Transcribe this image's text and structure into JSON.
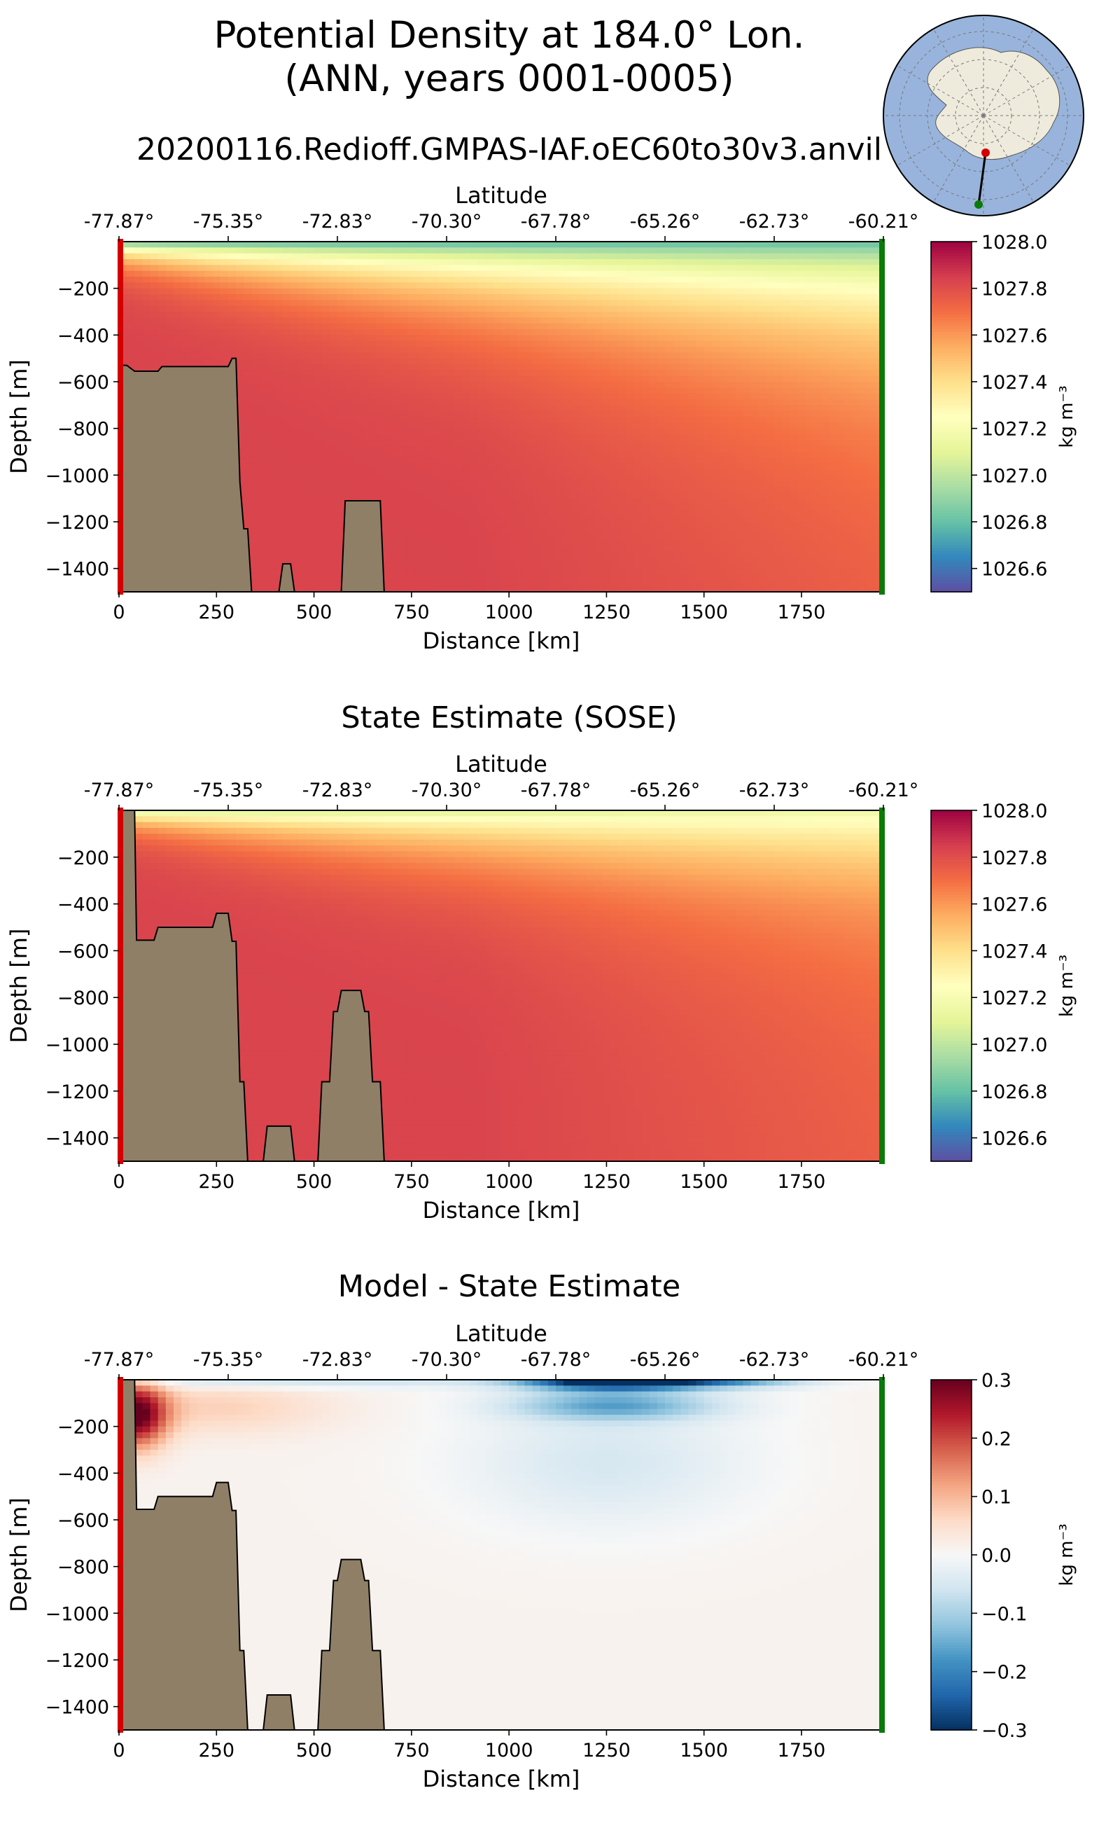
{
  "figure": {
    "title_line1": "Potential Density at 184.0° Lon.",
    "title_line2": "(ANN, years 0001-0005)",
    "subtitle": "20200116.Redioff.GMPAS-IAF.oEC60to30v3.anvil"
  },
  "chart_data": [
    {
      "type": "heatmap",
      "title": "",
      "xlabel": "Distance [km]",
      "ylabel": "Depth [m]",
      "top_axis_label": "Latitude",
      "xlim": [
        0,
        1960
      ],
      "ylim": [
        -1500,
        0
      ],
      "xticks": [
        0,
        250,
        500,
        750,
        1000,
        1250,
        1500,
        1750
      ],
      "yticks": [
        -200,
        -400,
        -600,
        -800,
        -1000,
        -1200,
        -1400
      ],
      "top_ticks": [
        {
          "distance": 0,
          "label": "-77.87°"
        },
        {
          "distance": 280,
          "label": "-75.35°"
        },
        {
          "distance": 560,
          "label": "-72.83°"
        },
        {
          "distance": 840,
          "label": "-70.30°"
        },
        {
          "distance": 1120,
          "label": "-67.78°"
        },
        {
          "distance": 1400,
          "label": "-65.26°"
        },
        {
          "distance": 1680,
          "label": "-62.73°"
        },
        {
          "distance": 1960,
          "label": "-60.21°"
        }
      ],
      "colorbar": {
        "label": "kg m⁻³",
        "colormap": "Spectral_r",
        "range": [
          1026.5,
          1028.0
        ],
        "ticks": [
          1028.0,
          1027.8,
          1027.6,
          1027.4,
          1027.2,
          1027.0,
          1026.8,
          1026.6
        ]
      },
      "section_start_color": "#d40000",
      "section_end_color": "#0a7a0a",
      "bathymetry_color": "#8f7f67",
      "bathymetry": [
        [
          0,
          -530
        ],
        [
          20,
          -530
        ],
        [
          40,
          -555
        ],
        [
          100,
          -555
        ],
        [
          110,
          -535
        ],
        [
          280,
          -535
        ],
        [
          290,
          -500
        ],
        [
          300,
          -500
        ],
        [
          310,
          -1030
        ],
        [
          320,
          -1230
        ],
        [
          330,
          -1230
        ],
        [
          340,
          -1500
        ],
        [
          410,
          -1500
        ],
        [
          420,
          -1380
        ],
        [
          440,
          -1380
        ],
        [
          450,
          -1500
        ],
        [
          570,
          -1500
        ],
        [
          580,
          -1110
        ],
        [
          670,
          -1110
        ],
        [
          680,
          -1500
        ]
      ],
      "field_description": "surface 1026.7-1027.2 light layer deepening northward; interior ~1027.75-1027.85"
    },
    {
      "type": "heatmap",
      "title": "State Estimate (SOSE)",
      "xlabel": "Distance [km]",
      "ylabel": "Depth [m]",
      "top_axis_label": "Latitude",
      "xlim": [
        0,
        1960
      ],
      "ylim": [
        -1500,
        0
      ],
      "xticks": [
        0,
        250,
        500,
        750,
        1000,
        1250,
        1500,
        1750
      ],
      "yticks": [
        -200,
        -400,
        -600,
        -800,
        -1000,
        -1200,
        -1400
      ],
      "top_ticks": [
        {
          "distance": 0,
          "label": "-77.87°"
        },
        {
          "distance": 280,
          "label": "-75.35°"
        },
        {
          "distance": 560,
          "label": "-72.83°"
        },
        {
          "distance": 840,
          "label": "-70.30°"
        },
        {
          "distance": 1120,
          "label": "-67.78°"
        },
        {
          "distance": 1400,
          "label": "-65.26°"
        },
        {
          "distance": 1680,
          "label": "-62.73°"
        },
        {
          "distance": 1960,
          "label": "-60.21°"
        }
      ],
      "colorbar": {
        "label": "kg m⁻³",
        "colormap": "Spectral_r",
        "range": [
          1026.5,
          1028.0
        ],
        "ticks": [
          1028.0,
          1027.8,
          1027.6,
          1027.4,
          1027.2,
          1027.0,
          1026.8,
          1026.6
        ]
      },
      "section_start_color": "#d40000",
      "section_end_color": "#0a7a0a",
      "bathymetry_color": "#8f7f67",
      "bathymetry": [
        [
          0,
          0
        ],
        [
          40,
          0
        ],
        [
          45,
          -555
        ],
        [
          90,
          -555
        ],
        [
          100,
          -500
        ],
        [
          240,
          -500
        ],
        [
          250,
          -440
        ],
        [
          280,
          -440
        ],
        [
          290,
          -560
        ],
        [
          300,
          -560
        ],
        [
          310,
          -1160
        ],
        [
          320,
          -1160
        ],
        [
          330,
          -1500
        ],
        [
          370,
          -1500
        ],
        [
          380,
          -1350
        ],
        [
          440,
          -1350
        ],
        [
          450,
          -1500
        ],
        [
          510,
          -1500
        ],
        [
          520,
          -1160
        ],
        [
          540,
          -1160
        ],
        [
          550,
          -860
        ],
        [
          560,
          -860
        ],
        [
          570,
          -770
        ],
        [
          620,
          -770
        ],
        [
          630,
          -860
        ],
        [
          640,
          -860
        ],
        [
          650,
          -1160
        ],
        [
          670,
          -1160
        ],
        [
          680,
          -1500
        ]
      ],
      "field_description": "surface ~1027.0-1027.3; interior ~1027.8"
    },
    {
      "type": "heatmap",
      "title": "Model - State Estimate",
      "xlabel": "Distance [km]",
      "ylabel": "Depth [m]",
      "top_axis_label": "Latitude",
      "xlim": [
        0,
        1960
      ],
      "ylim": [
        -1500,
        0
      ],
      "xticks": [
        0,
        250,
        500,
        750,
        1000,
        1250,
        1500,
        1750
      ],
      "yticks": [
        -200,
        -400,
        -600,
        -800,
        -1000,
        -1200,
        -1400
      ],
      "top_ticks": [
        {
          "distance": 0,
          "label": "-77.87°"
        },
        {
          "distance": 280,
          "label": "-75.35°"
        },
        {
          "distance": 560,
          "label": "-72.83°"
        },
        {
          "distance": 840,
          "label": "-70.30°"
        },
        {
          "distance": 1120,
          "label": "-67.78°"
        },
        {
          "distance": 1400,
          "label": "-65.26°"
        },
        {
          "distance": 1680,
          "label": "-62.73°"
        },
        {
          "distance": 1960,
          "label": "-60.21°"
        }
      ],
      "colorbar": {
        "label": "kg m⁻³",
        "colormap": "RdBu_r",
        "range": [
          -0.3,
          0.3
        ],
        "ticks": [
          0.3,
          0.2,
          0.1,
          0.0,
          -0.1,
          -0.2,
          -0.3
        ]
      },
      "section_start_color": "#d40000",
      "section_end_color": "#0a7a0a",
      "bathymetry_color": "#8f7f67",
      "bathymetry": [
        [
          0,
          0
        ],
        [
          40,
          0
        ],
        [
          45,
          -555
        ],
        [
          90,
          -555
        ],
        [
          100,
          -500
        ],
        [
          240,
          -500
        ],
        [
          250,
          -440
        ],
        [
          280,
          -440
        ],
        [
          290,
          -560
        ],
        [
          300,
          -560
        ],
        [
          310,
          -1160
        ],
        [
          320,
          -1160
        ],
        [
          330,
          -1500
        ],
        [
          370,
          -1500
        ],
        [
          380,
          -1350
        ],
        [
          440,
          -1350
        ],
        [
          450,
          -1500
        ],
        [
          510,
          -1500
        ],
        [
          520,
          -1160
        ],
        [
          540,
          -1160
        ],
        [
          550,
          -860
        ],
        [
          560,
          -860
        ],
        [
          570,
          -770
        ],
        [
          620,
          -770
        ],
        [
          630,
          -860
        ],
        [
          640,
          -860
        ],
        [
          650,
          -1160
        ],
        [
          670,
          -1160
        ],
        [
          680,
          -1500
        ]
      ],
      "field_description": "strong negative surface band (-0.3) near 1100-1400 km; positive +0.25 near coast 40-100 km at 150 m; near-zero interior"
    }
  ],
  "inset_map": {
    "ocean_color": "#98b4dc",
    "land_color": "#efebdc",
    "start_marker_color": "#d40000",
    "end_marker_color": "#0a7a0a"
  }
}
